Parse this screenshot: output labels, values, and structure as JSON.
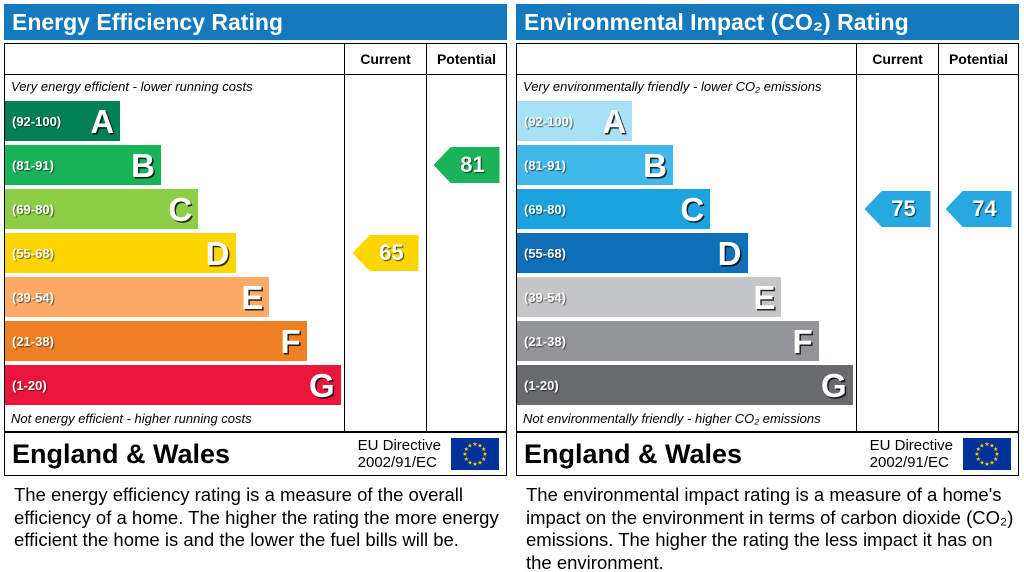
{
  "accent": {
    "header_bg": "#1479bd",
    "eu_flag_bg": "#003399",
    "eu_star_color": "#ffcc00"
  },
  "chart_data": [
    {
      "type": "bar",
      "title": "Energy Efficiency Rating",
      "columns": [
        "Current",
        "Potential"
      ],
      "top_note": "Very energy efficient - lower running costs",
      "bottom_note": "Not energy efficient - higher running costs",
      "band_scale_note": "band widths are percent of band column width",
      "bands": [
        {
          "letter": "A",
          "range": "(92-100)",
          "min": 92,
          "max": 100,
          "color": "#008054",
          "width": "34%"
        },
        {
          "letter": "B",
          "range": "(81-91)",
          "min": 81,
          "max": 91,
          "color": "#19b459",
          "width": "46%"
        },
        {
          "letter": "C",
          "range": "(69-80)",
          "min": 69,
          "max": 80,
          "color": "#8dce46",
          "width": "57%"
        },
        {
          "letter": "D",
          "range": "(55-68)",
          "min": 55,
          "max": 68,
          "color": "#ffd500",
          "width": "68%"
        },
        {
          "letter": "E",
          "range": "(39-54)",
          "min": 39,
          "max": 54,
          "color": "#fcaa65",
          "width": "78%"
        },
        {
          "letter": "F",
          "range": "(21-38)",
          "min": 21,
          "max": 38,
          "color": "#ef8023",
          "width": "89%"
        },
        {
          "letter": "G",
          "range": "(1-20)",
          "min": 1,
          "max": 20,
          "color": "#e9153b",
          "width": "99%"
        }
      ],
      "current": {
        "label": "65",
        "value": 65,
        "band_index": 3,
        "band_letter": "D",
        "color": "#ffd500",
        "text_color": "#ffffff"
      },
      "potential": {
        "label": "81",
        "value": 81,
        "band_index": 1,
        "band_letter": "B",
        "color": "#19b459",
        "text_color": "#ffffff"
      },
      "footer": {
        "region": "England & Wales",
        "directive": [
          "EU Directive",
          "2002/91/EC"
        ]
      },
      "description": "The energy efficiency rating is a measure of the overall efficiency of a home. The higher the rating the more energy efficient the home is and the lower the fuel bills will be."
    },
    {
      "type": "bar",
      "title": "Environmental Impact (CO₂) Rating",
      "columns": [
        "Current",
        "Potential"
      ],
      "top_note": "Very environmentally friendly - lower CO₂ emissions",
      "bottom_note": "Not environmentally friendly - higher CO₂ emissions",
      "band_scale_note": "band widths are percent of band column width",
      "bands": [
        {
          "letter": "A",
          "range": "(92-100)",
          "min": 92,
          "max": 100,
          "color": "#a8e0f5",
          "width": "34%"
        },
        {
          "letter": "B",
          "range": "(81-91)",
          "min": 81,
          "max": 91,
          "color": "#42b8ea",
          "width": "46%"
        },
        {
          "letter": "C",
          "range": "(69-80)",
          "min": 69,
          "max": 80,
          "color": "#1aa3dc",
          "width": "57%"
        },
        {
          "letter": "D",
          "range": "(55-68)",
          "min": 55,
          "max": 68,
          "color": "#0f6fb7",
          "width": "68%"
        },
        {
          "letter": "E",
          "range": "(39-54)",
          "min": 39,
          "max": 54,
          "color": "#c5c6c8",
          "width": "78%"
        },
        {
          "letter": "F",
          "range": "(21-38)",
          "min": 21,
          "max": 38,
          "color": "#949598",
          "width": "89%"
        },
        {
          "letter": "G",
          "range": "(1-20)",
          "min": 1,
          "max": 20,
          "color": "#686a6d",
          "width": "99%"
        }
      ],
      "current": {
        "label": "75",
        "value": 75,
        "band_index": 2,
        "band_letter": "C",
        "color": "#28a8e0",
        "text_color": "#ffffff"
      },
      "potential": {
        "label": "74",
        "value": 74,
        "band_index": 2,
        "band_letter": "C",
        "color": "#28a8e0",
        "text_color": "#ffffff"
      },
      "footer": {
        "region": "England & Wales",
        "directive": [
          "EU Directive",
          "2002/91/EC"
        ]
      },
      "description": "The environmental impact rating is a measure of a home's impact on the environment in terms of carbon dioxide (CO₂) emissions. The higher the rating the less impact it has on the environment."
    }
  ]
}
